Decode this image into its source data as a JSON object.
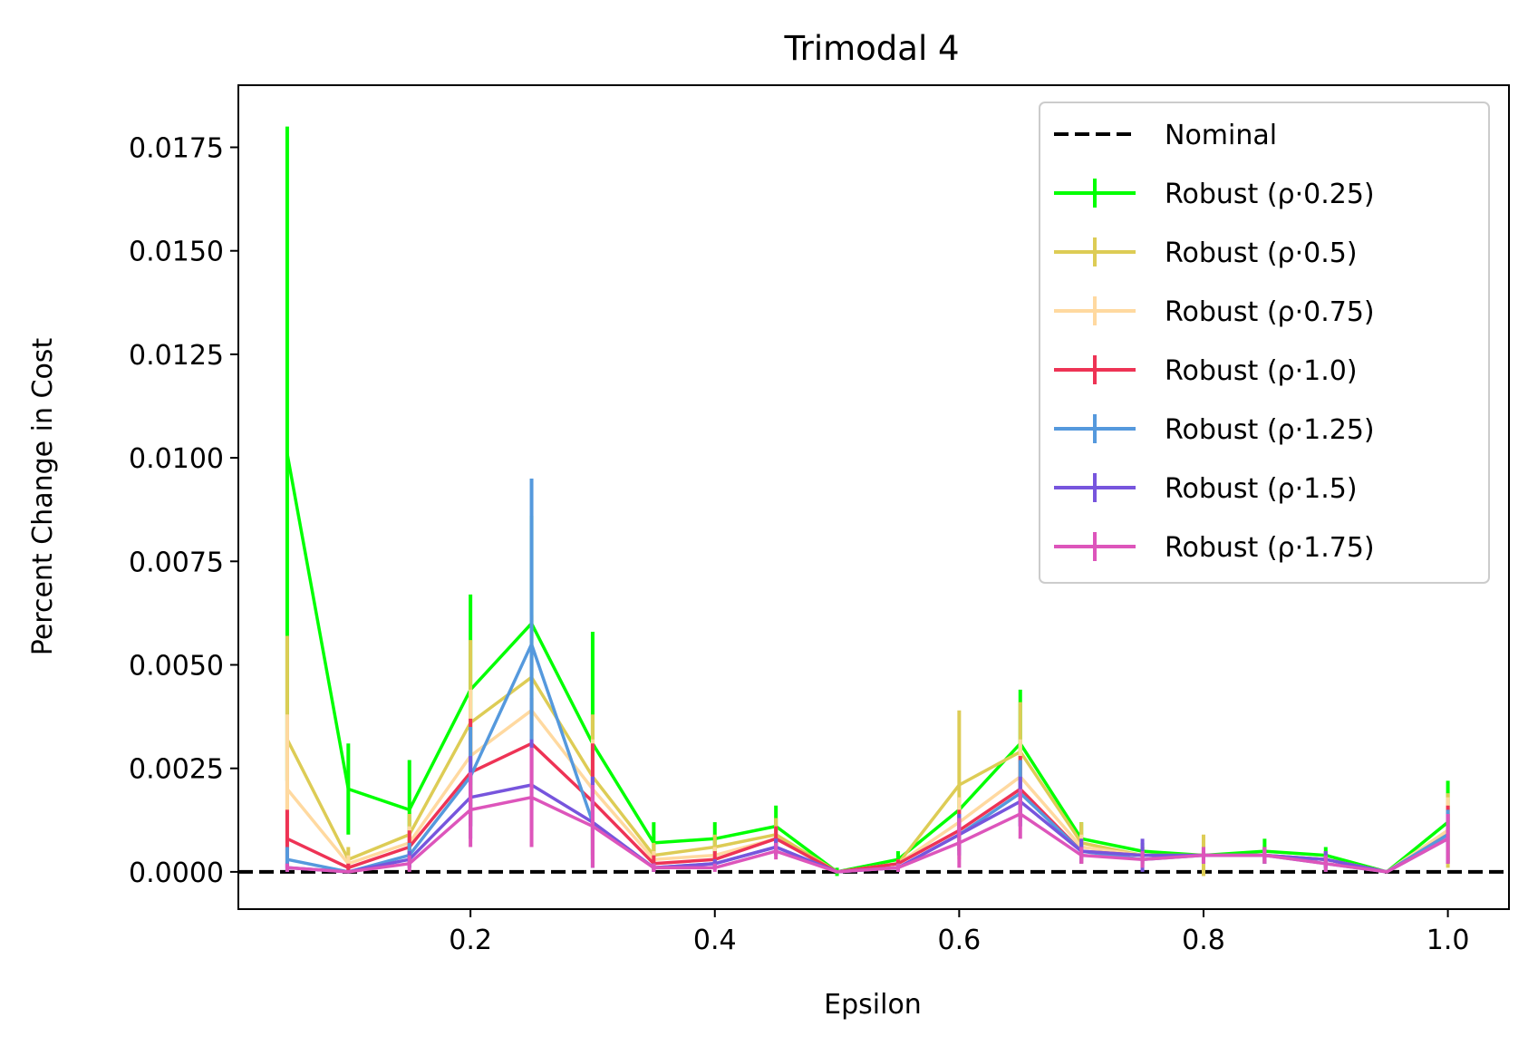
{
  "chart_data": {
    "type": "line",
    "title": "Trimodal 4",
    "xlabel": "Epsilon",
    "ylabel": "Percent Change in Cost",
    "xlim": [
      0.01,
      1.05
    ],
    "ylim": [
      -0.0009,
      0.019
    ],
    "xticks": [
      0.2,
      0.4,
      0.6,
      0.8,
      1.0
    ],
    "xtick_labels": [
      "0.2",
      "0.4",
      "0.6",
      "0.8",
      "1.0"
    ],
    "yticks": [
      0.0,
      0.0025,
      0.005,
      0.0075,
      0.01,
      0.0125,
      0.015,
      0.0175
    ],
    "ytick_labels": [
      "0.0000",
      "0.0025",
      "0.0050",
      "0.0075",
      "0.0100",
      "0.0125",
      "0.0150",
      "0.0175"
    ],
    "grid": false,
    "legend_position": "top-right",
    "x": [
      0.05,
      0.1,
      0.15,
      0.2,
      0.25,
      0.3,
      0.35,
      0.4,
      0.45,
      0.5,
      0.55,
      0.6,
      0.65,
      0.7,
      0.75,
      0.8,
      0.85,
      0.9,
      0.95,
      1.0
    ],
    "nominal": {
      "name": "Nominal",
      "value": 0.0,
      "color": "#000000",
      "style": "dashed"
    },
    "series": [
      {
        "name": "Robust (ρ·0.25)",
        "color": "#00ff00",
        "values": [
          0.0101,
          0.002,
          0.0015,
          0.0044,
          0.006,
          0.0031,
          0.0007,
          0.0008,
          0.0011,
          0.0,
          0.0003,
          0.0015,
          0.0031,
          0.0008,
          0.0005,
          0.0004,
          0.0005,
          0.0004,
          0.0,
          0.0012
        ],
        "errors": [
          0.0079,
          0.0011,
          0.0012,
          0.0023,
          0.0026,
          0.0027,
          0.0005,
          0.0004,
          0.0005,
          0.0001,
          0.0002,
          0.0003,
          0.0013,
          0.0004,
          0.0002,
          0.0002,
          0.0003,
          0.0002,
          0.0,
          0.001
        ]
      },
      {
        "name": "Robust (ρ·0.5)",
        "color": "#ddcc55",
        "values": [
          0.0032,
          0.0003,
          0.0009,
          0.0036,
          0.0047,
          0.0023,
          0.0004,
          0.0006,
          0.0009,
          0.0,
          0.0002,
          0.0021,
          0.0029,
          0.0007,
          0.0004,
          0.0004,
          0.0004,
          0.0003,
          0.0,
          0.001
        ],
        "errors": [
          0.0025,
          0.0003,
          0.0005,
          0.002,
          0.0015,
          0.0015,
          0.0003,
          0.0003,
          0.0004,
          0.0,
          0.0001,
          0.0018,
          0.0012,
          0.0005,
          0.0002,
          0.0005,
          0.0002,
          0.0002,
          0.0,
          0.0009
        ]
      },
      {
        "name": "Robust (ρ·0.75)",
        "color": "#ffd9a0",
        "values": [
          0.002,
          0.0002,
          0.0007,
          0.0028,
          0.0039,
          0.002,
          0.0003,
          0.0004,
          0.0008,
          0.0,
          0.0002,
          0.0012,
          0.0023,
          0.0006,
          0.0004,
          0.0004,
          0.0004,
          0.0003,
          0.0,
          0.001
        ],
        "errors": [
          0.0018,
          0.0002,
          0.0004,
          0.0016,
          0.0015,
          0.0012,
          0.0002,
          0.0002,
          0.0003,
          0.0,
          0.0001,
          0.0006,
          0.0009,
          0.0003,
          0.0002,
          0.0002,
          0.0002,
          0.0002,
          0.0,
          0.0008
        ]
      },
      {
        "name": "Robust (ρ·1.0)",
        "color": "#ee3355",
        "values": [
          0.0008,
          0.0001,
          0.0006,
          0.0024,
          0.0031,
          0.0017,
          0.0002,
          0.0003,
          0.0008,
          0.0,
          0.0002,
          0.001,
          0.002,
          0.0005,
          0.0004,
          0.0004,
          0.0004,
          0.0003,
          0.0,
          0.0009
        ],
        "errors": [
          0.0007,
          0.0001,
          0.0004,
          0.0013,
          0.0011,
          0.0014,
          0.0002,
          0.0002,
          0.0003,
          0.0,
          0.0001,
          0.0005,
          0.0008,
          0.0003,
          0.0002,
          0.0002,
          0.0002,
          0.0002,
          0.0,
          0.0007
        ]
      },
      {
        "name": "Robust (ρ·1.25)",
        "color": "#5599dd",
        "values": [
          0.0003,
          0.0,
          0.0004,
          0.0023,
          0.0055,
          0.0012,
          0.0001,
          0.0002,
          0.0006,
          0.0,
          0.0001,
          0.0009,
          0.0019,
          0.0005,
          0.0003,
          0.0004,
          0.0004,
          0.0002,
          0.0,
          0.0009
        ],
        "errors": [
          0.0003,
          0.0,
          0.0003,
          0.0012,
          0.004,
          0.0011,
          0.0001,
          0.0001,
          0.0002,
          0.0,
          0.0001,
          0.0005,
          0.0008,
          0.0002,
          0.0002,
          0.0002,
          0.0002,
          0.0002,
          0.0,
          0.0006
        ]
      },
      {
        "name": "Robust (ρ·1.5)",
        "color": "#7755dd",
        "values": [
          0.0001,
          0.0,
          0.0003,
          0.0018,
          0.0021,
          0.0012,
          0.0001,
          0.0002,
          0.0006,
          0.0,
          0.0001,
          0.0009,
          0.0017,
          0.0005,
          0.0004,
          0.0004,
          0.0004,
          0.0003,
          0.0,
          0.0008
        ],
        "errors": [
          0.0001,
          0.0,
          0.0002,
          0.001,
          0.0011,
          0.0011,
          0.0001,
          0.0001,
          0.0002,
          0.0,
          0.0001,
          0.0005,
          0.0006,
          0.0003,
          0.0004,
          0.0002,
          0.0002,
          0.0002,
          0.0,
          0.0006
        ]
      },
      {
        "name": "Robust (ρ·1.75)",
        "color": "#dd55bb",
        "values": [
          0.0001,
          0.0,
          0.0002,
          0.0015,
          0.0018,
          0.0011,
          0.0001,
          0.0001,
          0.0005,
          0.0,
          0.0001,
          0.0007,
          0.0014,
          0.0004,
          0.0003,
          0.0004,
          0.0004,
          0.0002,
          0.0,
          0.0008
        ],
        "errors": [
          0.0001,
          0.0,
          0.0002,
          0.0009,
          0.0012,
          0.001,
          0.0001,
          0.0001,
          0.0002,
          0.0,
          0.0001,
          0.0006,
          0.0006,
          0.0002,
          0.0002,
          0.0002,
          0.0002,
          0.0002,
          0.0,
          0.0006
        ]
      }
    ]
  }
}
